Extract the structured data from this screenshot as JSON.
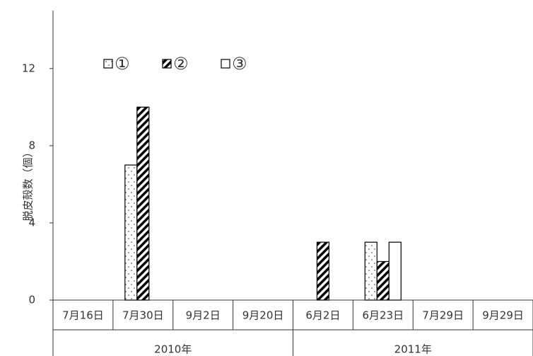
{
  "chart_data": {
    "type": "bar",
    "y_label": "脱皮殻数（個）",
    "categories": [
      "7月16日",
      "7月30日",
      "9月2日",
      "9月20日",
      "6月2日",
      "6月23日",
      "7月29日",
      "9月29日"
    ],
    "category_groups": [
      "2010年",
      "2011年"
    ],
    "series": [
      {
        "name": "①",
        "color": "#000000",
        "pattern": "dots",
        "values": [
          0,
          7,
          0,
          0,
          0,
          3,
          0,
          0
        ]
      },
      {
        "name": "②",
        "color": "#000000",
        "pattern": "hatch",
        "values": [
          0,
          10,
          0,
          0,
          3,
          2,
          0,
          0
        ]
      },
      {
        "name": "③",
        "color": "#000000",
        "pattern": "none",
        "values": [
          0,
          0,
          0,
          0,
          0,
          3,
          0,
          0
        ]
      }
    ],
    "ylim": [
      0,
      15
    ],
    "yticks": [
      0,
      4,
      8,
      12
    ],
    "grid": false,
    "legend": "top-left"
  }
}
